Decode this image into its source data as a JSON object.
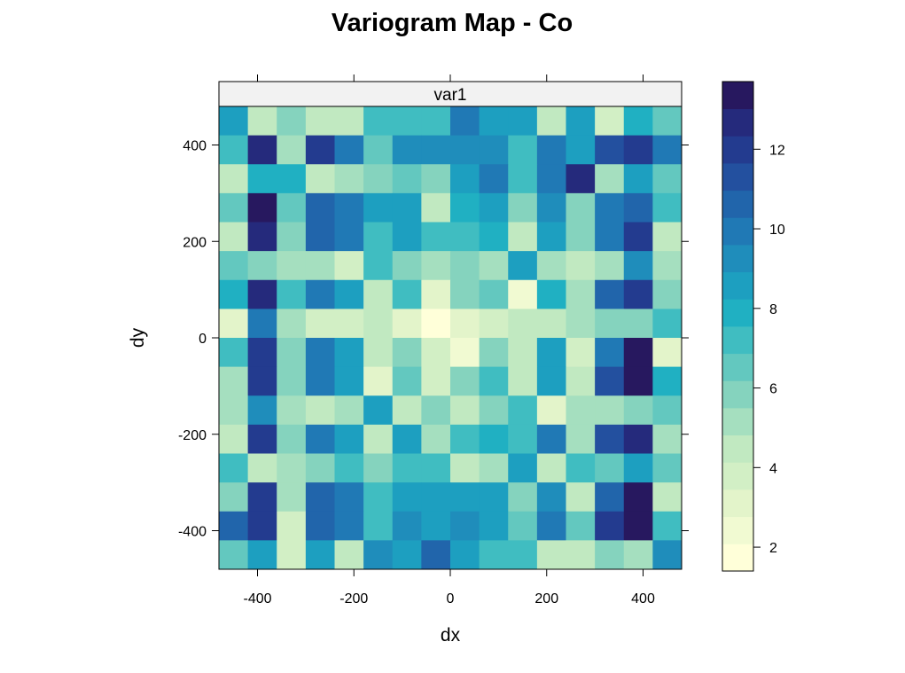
{
  "chart_data": {
    "type": "heatmap",
    "title": "Variogram Map - Co",
    "xlabel": "dx",
    "ylabel": "dy",
    "panel_label": "var1",
    "x_ticks": [
      -400,
      -200,
      0,
      200,
      400
    ],
    "y_ticks": [
      -400,
      -200,
      0,
      200,
      400
    ],
    "xlim": [
      -480,
      480
    ],
    "ylim": [
      -480,
      480
    ],
    "cell_size": 60,
    "x_centers": [
      -450,
      -390,
      -330,
      -270,
      -210,
      -150,
      -90,
      -30,
      30,
      90,
      150,
      210,
      270,
      330,
      390,
      450
    ],
    "y_centers": [
      450,
      390,
      330,
      270,
      210,
      150,
      90,
      30,
      -30,
      -90,
      -150,
      -210,
      -270,
      -330,
      -390,
      -450
    ],
    "colorbar": {
      "ticks": [
        2,
        4,
        6,
        8,
        10,
        12
      ],
      "range": [
        1.4,
        13.7
      ],
      "colors": [
        "#ffffd9",
        "#f1fad2",
        "#e3f4ca",
        "#d2efc5",
        "#c1e9c1",
        "#a5dfbf",
        "#85d3be",
        "#63c8bf",
        "#40bdc1",
        "#20b0c2",
        "#1d9fc0",
        "#1f8dbb",
        "#2079b5",
        "#2165ab",
        "#23509f",
        "#233b8f",
        "#252a7c",
        "#27185f"
      ]
    },
    "values_note": "rows ordered top (dy=450) to bottom (dy=-450), columns left (dx=-450) to right (dx=450); estimated semivariance",
    "values": [
      [
        8.8,
        4.2,
        5.9,
        4.4,
        4.4,
        7.2,
        7.2,
        7.2,
        9.9,
        8.8,
        8.8,
        4.6,
        8.5,
        3.6,
        8.0,
        6.7
      ],
      [
        7.1,
        12.8,
        4.9,
        12.3,
        10.2,
        6.4,
        9.0,
        9.5,
        9.5,
        9.5,
        6.9,
        10.2,
        8.5,
        11.0,
        11.8,
        10.2
      ],
      [
        4.4,
        8.0,
        8.0,
        4.6,
        5.0,
        5.6,
        6.3,
        5.8,
        8.8,
        9.6,
        7.1,
        9.6,
        13.0,
        5.1,
        8.3,
        6.5
      ],
      [
        6.7,
        13.7,
        6.4,
        10.5,
        9.6,
        8.8,
        8.8,
        4.6,
        8.0,
        8.8,
        5.6,
        9.4,
        5.9,
        10.2,
        10.8,
        7.0
      ],
      [
        4.6,
        13.0,
        5.9,
        10.8,
        9.6,
        7.1,
        8.3,
        7.1,
        7.1,
        8.0,
        4.5,
        8.6,
        5.6,
        10.2,
        11.9,
        4.4
      ],
      [
        6.4,
        5.8,
        5.0,
        5.0,
        3.7,
        7.1,
        5.6,
        5.0,
        5.6,
        5.0,
        8.7,
        4.9,
        4.3,
        5.0,
        9.4,
        5.1
      ],
      [
        8.2,
        13.0,
        7.1,
        10.2,
        8.8,
        4.4,
        7.0,
        3.2,
        5.6,
        6.5,
        2.7,
        8.0,
        4.9,
        10.5,
        11.8,
        5.6
      ],
      [
        3.1,
        10.2,
        4.9,
        3.7,
        3.7,
        4.4,
        3.2,
        2.0,
        3.0,
        3.6,
        4.6,
        4.3,
        4.9,
        5.6,
        5.6,
        7.0
      ],
      [
        7.1,
        12.3,
        5.6,
        9.8,
        8.8,
        4.7,
        5.6,
        3.6,
        2.7,
        5.6,
        4.5,
        8.6,
        3.7,
        10.2,
        13.2,
        3.0
      ],
      [
        5.1,
        12.3,
        5.6,
        9.8,
        8.3,
        3.0,
        6.2,
        3.8,
        5.6,
        7.0,
        4.4,
        8.8,
        4.4,
        11.0,
        13.4,
        8.2
      ],
      [
        5.1,
        9.4,
        5.0,
        4.4,
        5.0,
        8.5,
        4.4,
        5.6,
        4.6,
        5.7,
        7.0,
        3.1,
        5.0,
        5.0,
        5.6,
        6.4
      ],
      [
        4.4,
        12.3,
        5.6,
        10.2,
        8.8,
        4.3,
        8.3,
        4.9,
        7.0,
        8.2,
        7.0,
        9.8,
        5.0,
        11.4,
        13.0,
        4.9
      ],
      [
        7.1,
        4.4,
        5.0,
        5.6,
        7.0,
        5.6,
        7.0,
        7.0,
        4.4,
        5.0,
        8.8,
        4.6,
        7.1,
        6.4,
        8.7,
        6.5
      ],
      [
        5.6,
        12.3,
        5.0,
        10.8,
        9.6,
        7.0,
        8.8,
        8.8,
        8.3,
        8.8,
        5.6,
        9.4,
        4.2,
        10.8,
        13.2,
        4.3
      ],
      [
        10.8,
        12.3,
        3.7,
        10.8,
        10.2,
        7.0,
        9.4,
        8.3,
        9.4,
        8.8,
        6.4,
        10.2,
        6.4,
        12.3,
        13.2,
        7.0
      ],
      [
        6.2,
        8.3,
        3.7,
        8.3,
        4.3,
        9.2,
        8.8,
        10.4,
        8.8,
        7.1,
        7.1,
        4.4,
        4.4,
        5.6,
        5.0,
        9.0
      ]
    ]
  }
}
